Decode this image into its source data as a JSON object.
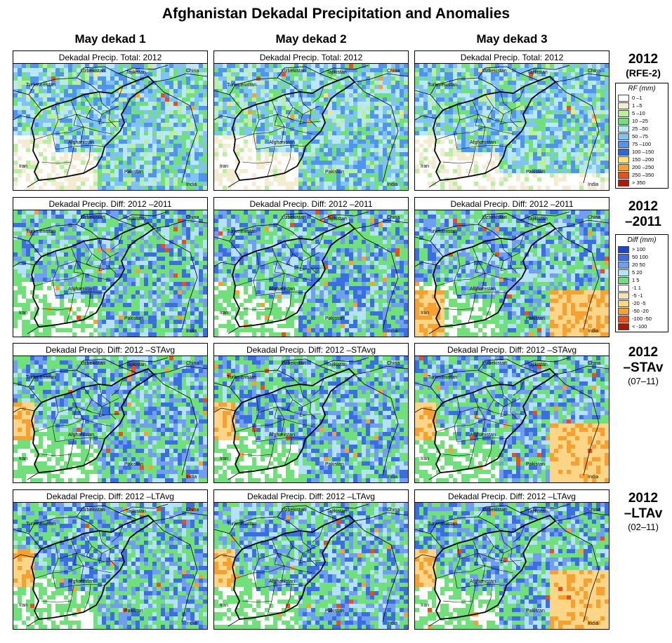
{
  "title": "Afghanistan Dekadal Precipitation and Anomalies",
  "columns": [
    "May dekad 1",
    "May dekad 2",
    "May dekad 3"
  ],
  "rows": [
    {
      "key": "total",
      "panel_title": "Dekadal Precip. Total: 2012",
      "label_line1": "2012",
      "label_line2": "(RFE-2)"
    },
    {
      "key": "diff2011",
      "panel_title": "Dekadal Precip. Diff:  2012 –2011",
      "label_line1": "2012",
      "label_line2": "–2011"
    },
    {
      "key": "diffst",
      "panel_title": "Dekadal Precip. Diff:  2012 –STAvg",
      "label_line1": "2012",
      "label_line2": "–STAv",
      "label_line3": "(07–11)"
    },
    {
      "key": "difflt",
      "panel_title": "Dekadal Precip. Diff:  2012 –LTAvg",
      "label_line1": "2012",
      "label_line2": "–LTAv",
      "label_line3": "(02–11)"
    }
  ],
  "map_labels": {
    "uzbekistan": "Uzbekistan",
    "tajikistan": "Tajikistan",
    "china": "China",
    "turkmenistan": "Turkmenistan",
    "afghanistan": "Afghanistan",
    "iran": "Iran",
    "pakistan": "Pakistan",
    "india": "India"
  },
  "legend_rf": {
    "title": "RF (mm)",
    "items": [
      {
        "label": "0 –1",
        "color": "#ffffff"
      },
      {
        "label": "1 –5",
        "color": "#f4ecd2"
      },
      {
        "label": "5 –10",
        "color": "#b8f0a0"
      },
      {
        "label": "10 –25",
        "color": "#6fe07a"
      },
      {
        "label": "25 –50",
        "color": "#b9e7fb"
      },
      {
        "label": "50 –75",
        "color": "#7fc3f7"
      },
      {
        "label": "75 –100",
        "color": "#4f94ef"
      },
      {
        "label": "100 –150",
        "color": "#2f63e0"
      },
      {
        "label": "150 –200",
        "color": "#ffe07a"
      },
      {
        "label": "200 –250",
        "color": "#f8a030"
      },
      {
        "label": "250 –350",
        "color": "#e85018"
      },
      {
        "label": "> 350",
        "color": "#b01808"
      }
    ]
  },
  "legend_diff": {
    "title": "Diff (mm)",
    "items": [
      {
        "label": "> 100",
        "color": "#1d45c8"
      },
      {
        "label": "50  100",
        "color": "#3a6fe4"
      },
      {
        "label": "20  50",
        "color": "#6f9ef2"
      },
      {
        "label": "5  20",
        "color": "#b5e2fb"
      },
      {
        "label": "1  5",
        "color": "#6fe07a"
      },
      {
        "label": "-1  1",
        "color": "#ffffff"
      },
      {
        "label": "-5  -1",
        "color": "#f4dfb8"
      },
      {
        "label": "-20  -5",
        "color": "#fcd686"
      },
      {
        "label": "-50  -20",
        "color": "#f8a030"
      },
      {
        "label": "-100  -50",
        "color": "#e85018"
      },
      {
        "label": "< -100",
        "color": "#a81808"
      }
    ]
  },
  "palettes": {
    "total": [
      "#ffffff",
      "#f4ecd2",
      "#b8f0a0",
      "#6fe07a",
      "#b9e7fb",
      "#7fc3f7",
      "#4f94ef",
      "#2f63e0",
      "#ffe07a",
      "#f8a030",
      "#e85018",
      "#b01808"
    ],
    "diff": [
      "#a81808",
      "#e85018",
      "#f8a030",
      "#fcd686",
      "#f4dfb8",
      "#ffffff",
      "#6fe07a",
      "#b5e2fb",
      "#6f9ef2",
      "#3a6fe4",
      "#1d45c8"
    ]
  }
}
